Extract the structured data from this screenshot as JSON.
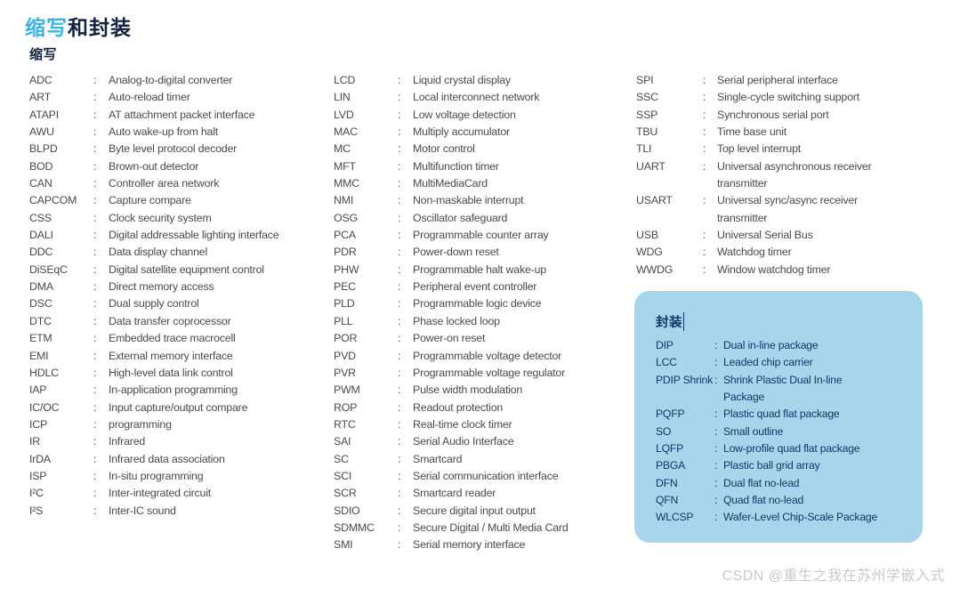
{
  "page": {
    "title_highlight": "缩写",
    "title_rest": "和封装",
    "watermark": "CSDN @重生之我在苏州学嵌入式"
  },
  "colors": {
    "accent_blue": "#3db4e7",
    "heading_dark": "#142440",
    "body_text": "#4a4b4d",
    "package_box_bg": "#a7d6ec",
    "package_box_text": "#0c3a66",
    "watermark_gray": "#c8cbce"
  },
  "abbreviations": {
    "heading": "缩写",
    "separator": ":",
    "columns": [
      [
        {
          "term": "ADC",
          "def": "Analog-to-digital converter"
        },
        {
          "term": "ART",
          "def": "Auto-reload timer"
        },
        {
          "term": "ATAPI",
          "def": "AT attachment packet interface"
        },
        {
          "term": "AWU",
          "def": "Auto wake-up from halt"
        },
        {
          "term": "BLPD",
          "def": "Byte level protocol decoder"
        },
        {
          "term": "BOD",
          "def": "Brown-out detector"
        },
        {
          "term": "CAN",
          "def": "Controller area network"
        },
        {
          "term": "CAPCOM",
          "def": "Capture compare"
        },
        {
          "term": "CSS",
          "def": "Clock security system"
        },
        {
          "term": "DALI",
          "def": "Digital addressable lighting interface"
        },
        {
          "term": "DDC",
          "def": "Data display channel"
        },
        {
          "term": "DiSEqC",
          "def": "Digital satellite equipment control"
        },
        {
          "term": "DMA",
          "def": "Direct memory access"
        },
        {
          "term": "DSC",
          "def": "Dual supply control"
        },
        {
          "term": "DTC",
          "def": "Data transfer coprocessor"
        },
        {
          "term": "ETM",
          "def": "Embedded trace macrocell"
        },
        {
          "term": "EMI",
          "def": "External memory interface"
        },
        {
          "term": "HDLC",
          "def": "High-level data link control"
        },
        {
          "term": "IAP",
          "def": "In-application programming"
        },
        {
          "term": "IC/OC",
          "def": "Input capture/output compare"
        },
        {
          "term": "ICP",
          "def": "programming"
        },
        {
          "term": "IR",
          "def": "Infrared"
        },
        {
          "term": "IrDA",
          "def": "Infrared data association"
        },
        {
          "term": "ISP",
          "def": "In-situ programming"
        },
        {
          "term": "I²C",
          "def": "Inter-integrated circuit"
        },
        {
          "term": "I²S",
          "def": "Inter-IC sound"
        }
      ],
      [
        {
          "term": "LCD",
          "def": "Liquid crystal display"
        },
        {
          "term": "LIN",
          "def": "Local interconnect network"
        },
        {
          "term": "LVD",
          "def": "Low voltage detection"
        },
        {
          "term": "MAC",
          "def": "Multiply accumulator"
        },
        {
          "term": "MC",
          "def": "Motor control"
        },
        {
          "term": "MFT",
          "def": "Multifunction timer"
        },
        {
          "term": "MMC",
          "def": "MultiMediaCard"
        },
        {
          "term": "NMI",
          "def": "Non-maskable interrupt"
        },
        {
          "term": "OSG",
          "def": "Oscillator safeguard"
        },
        {
          "term": "PCA",
          "def": "Programmable counter array"
        },
        {
          "term": "PDR",
          "def": "Power-down reset"
        },
        {
          "term": "PHW",
          "def": "Programmable halt wake-up"
        },
        {
          "term": "PEC",
          "def": "Peripheral event controller"
        },
        {
          "term": "PLD",
          "def": "Programmable logic device"
        },
        {
          "term": "PLL",
          "def": "Phase locked loop"
        },
        {
          "term": "POR",
          "def": "Power-on reset"
        },
        {
          "term": "PVD",
          "def": "Programmable voltage detector"
        },
        {
          "term": "PVR",
          "def": "Programmable voltage regulator"
        },
        {
          "term": "PWM",
          "def": "Pulse width modulation"
        },
        {
          "term": "ROP",
          "def": "Readout protection"
        },
        {
          "term": "RTC",
          "def": "Real-time clock timer"
        },
        {
          "term": "SAI",
          "def": "Serial Audio Interface"
        },
        {
          "term": "SC",
          "def": "Smartcard"
        },
        {
          "term": "SCI",
          "def": "Serial communication interface"
        },
        {
          "term": "SCR",
          "def": "Smartcard reader"
        },
        {
          "term": "SDIO",
          "def": "Secure digital input output"
        },
        {
          "term": "SDMMC",
          "def": "Secure Digital / Multi Media Card"
        },
        {
          "term": "SMI",
          "def": "Serial memory interface"
        }
      ],
      [
        {
          "term": "SPI",
          "def": "Serial peripheral interface"
        },
        {
          "term": "SSC",
          "def": "Single-cycle switching support"
        },
        {
          "term": "SSP",
          "def": "Synchronous serial port"
        },
        {
          "term": "TBU",
          "def": "Time base unit"
        },
        {
          "term": "TLI",
          "def": "Top level interrupt"
        },
        {
          "term": "UART",
          "def": "Universal asynchronous receiver\ntransmitter"
        },
        {
          "term": "USART",
          "def": "Universal sync/async receiver\ntransmitter"
        },
        {
          "term": "USB",
          "def": "Universal Serial Bus"
        },
        {
          "term": "WDG",
          "def": "Watchdog timer"
        },
        {
          "term": "WWDG",
          "def": "Window watchdog timer"
        }
      ]
    ]
  },
  "packages": {
    "heading": "封装",
    "separator": ":",
    "items": [
      {
        "term": "DIP",
        "def": "Dual in-line package"
      },
      {
        "term": "LCC",
        "def": "Leaded chip carrier"
      },
      {
        "term": "PDIP Shrink",
        "def": "Shrink Plastic Dual In-line\nPackage"
      },
      {
        "term": "PQFP",
        "def": "Plastic quad flat package"
      },
      {
        "term": "SO",
        "def": "Small outline"
      },
      {
        "term": "LQFP",
        "def": "Low-profile quad flat package"
      },
      {
        "term": "PBGA",
        "def": "Plastic ball grid array"
      },
      {
        "term": "DFN",
        "def": "Dual flat no-lead"
      },
      {
        "term": "QFN",
        "def": "Quad flat no-lead"
      },
      {
        "term": "WLCSP",
        "def": "Wafer-Level Chip-Scale Package"
      }
    ]
  }
}
